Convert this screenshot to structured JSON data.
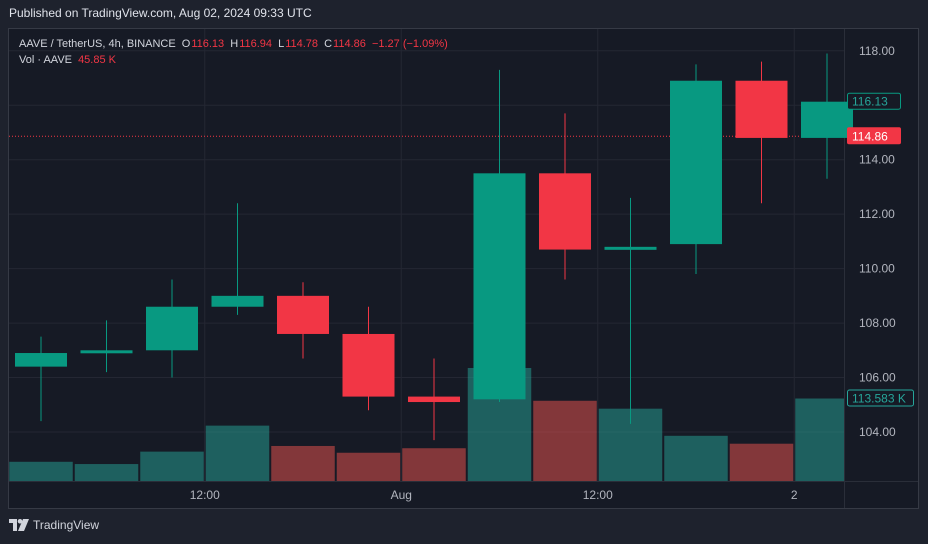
{
  "header": {
    "published": "Published on TradingView.com, Aug 02, 2024 09:33 UTC"
  },
  "legend": {
    "symbol": "AAVE / TetherUS, 4h, BINANCE",
    "o_label": "O",
    "o_value": "116.13",
    "h_label": "H",
    "h_value": "116.94",
    "l_label": "L",
    "l_value": "114.78",
    "c_label": "C",
    "c_value": "114.86",
    "change": "−1.27 (−1.09%)",
    "vol_label": "Vol · AAVE",
    "vol_value": "45.85 K"
  },
  "footer": {
    "brand": "TradingView"
  },
  "colors": {
    "up": "#089981",
    "down": "#f23645",
    "up_volume": "#26a69a",
    "down_volume": "#ef5350"
  },
  "chart_data": {
    "type": "candlestick",
    "y_range": [
      102.2,
      118.8
    ],
    "y_ticks": [
      "118.00",
      "116.00",
      "114.00",
      "112.00",
      "110.00",
      "108.00",
      "106.00",
      "104.00"
    ],
    "x_tick_labels": [
      {
        "label": "12:00",
        "at_candle": 2.5
      },
      {
        "label": "Aug",
        "at_candle": 5.5
      },
      {
        "label": "12:00",
        "at_candle": 8.5
      },
      {
        "label": "2",
        "at_candle": 11.5
      }
    ],
    "candles": [
      {
        "o": 106.4,
        "h": 107.5,
        "l": 104.4,
        "c": 106.9
      },
      {
        "o": 106.9,
        "h": 108.1,
        "l": 106.2,
        "c": 107.0
      },
      {
        "o": 107.0,
        "h": 109.6,
        "l": 106.0,
        "c": 108.6
      },
      {
        "o": 108.6,
        "h": 112.4,
        "l": 108.3,
        "c": 109.0
      },
      {
        "o": 109.0,
        "h": 109.5,
        "l": 106.7,
        "c": 107.6
      },
      {
        "o": 107.6,
        "h": 108.6,
        "l": 104.8,
        "c": 105.3
      },
      {
        "o": 105.3,
        "h": 106.7,
        "l": 103.7,
        "c": 105.1
      },
      {
        "o": 105.2,
        "h": 117.3,
        "l": 105.1,
        "c": 113.5
      },
      {
        "o": 113.5,
        "h": 115.7,
        "l": 109.6,
        "c": 110.7
      },
      {
        "o": 110.7,
        "h": 112.6,
        "l": 104.3,
        "c": 110.8
      },
      {
        "o": 110.9,
        "h": 117.5,
        "l": 109.8,
        "c": 116.9
      },
      {
        "o": 116.9,
        "h": 117.6,
        "l": 112.4,
        "c": 114.8
      },
      {
        "o": 114.8,
        "h": 117.9,
        "l": 113.3,
        "c": 116.13
      }
    ],
    "volume_relative": [
      0.17,
      0.15,
      0.26,
      0.49,
      0.31,
      0.25,
      0.29,
      1.0,
      0.71,
      0.64,
      0.4,
      0.33,
      0.73
    ],
    "price_labels": [
      {
        "value": 116.13,
        "text": "116.13",
        "style": "up-outline"
      },
      {
        "value": 114.86,
        "text": "114.86",
        "style": "down-fill"
      }
    ],
    "volume_label": {
      "text": "113.583 K",
      "at_bar": 12
    }
  }
}
